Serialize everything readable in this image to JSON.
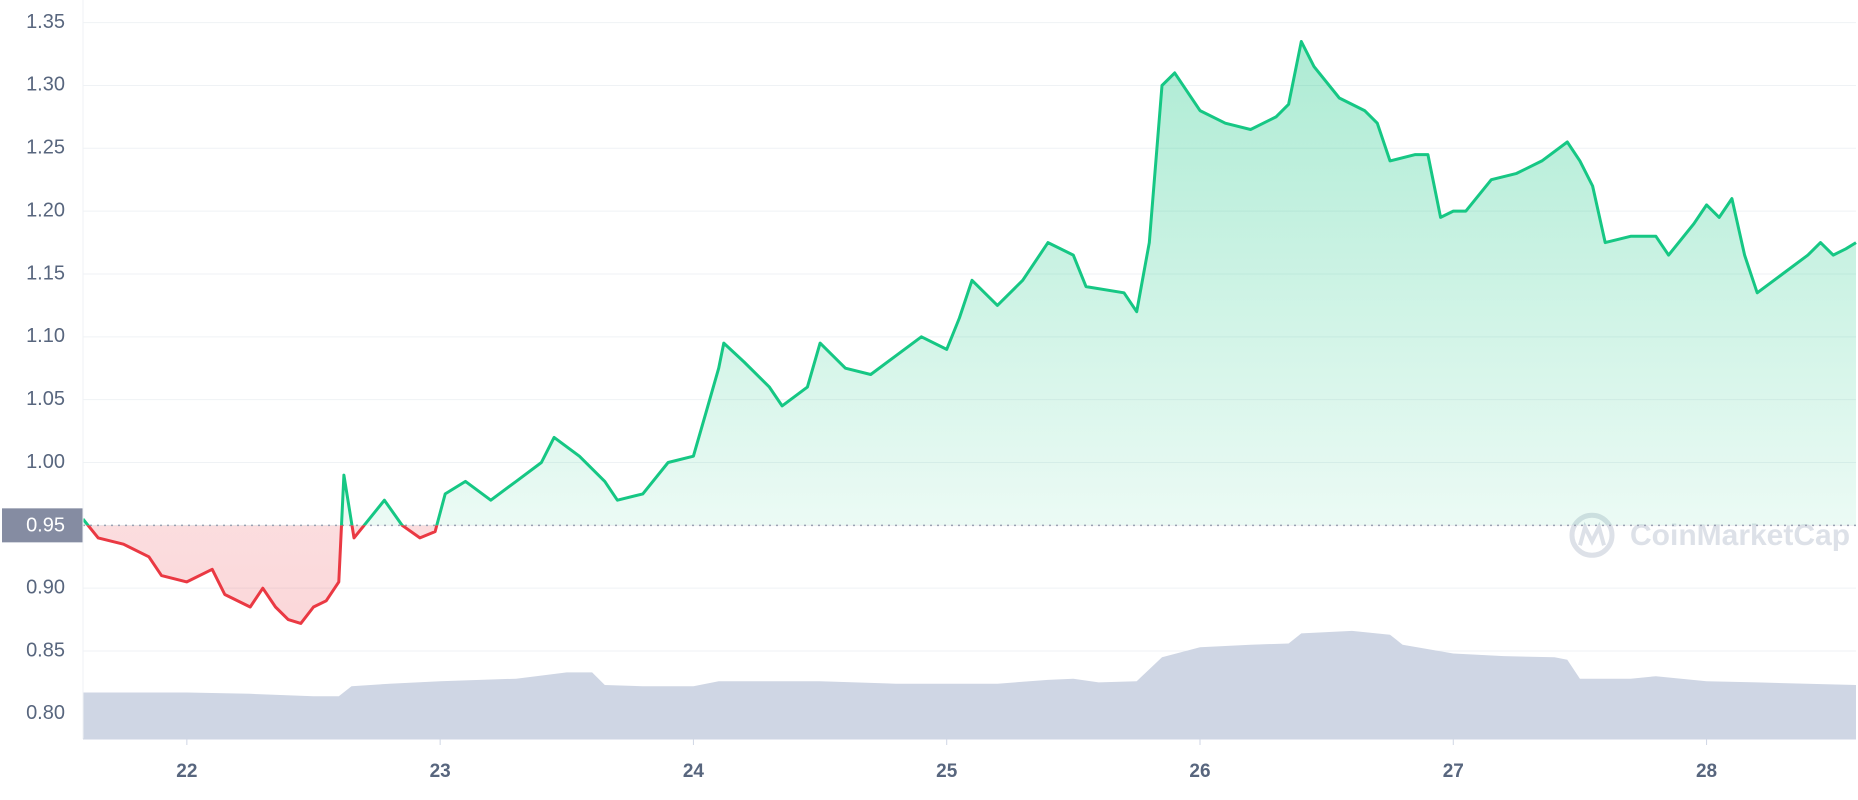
{
  "chart_data": {
    "type": "line",
    "xlim": [
      21.59,
      28.59
    ],
    "xticks": [
      22,
      23,
      24,
      25,
      26,
      27,
      28
    ],
    "ylim": [
      0.78,
      1.368
    ],
    "yticks": [
      {
        "value": 0.8,
        "label": "0.80"
      },
      0.85,
      {
        "value": 0.9,
        "label": "0.90"
      },
      0.95,
      {
        "value": 1.0,
        "label": "1.00"
      },
      1.05,
      {
        "value": 1.1,
        "label": "1.10"
      },
      1.15,
      {
        "value": 1.2,
        "label": "1.20"
      },
      1.25,
      {
        "value": 1.3,
        "label": "1.30"
      },
      1.35
    ],
    "grid": true,
    "baseline": 0.95,
    "watermark": "CoinMarketCap",
    "series": [
      {
        "color": "#16c784",
        "below_color": "#ea3943",
        "x": [
          21.59,
          21.65,
          21.75,
          21.85,
          21.9,
          22.0,
          22.1,
          22.15,
          22.25,
          22.3,
          22.35,
          22.4,
          22.45,
          22.5,
          22.55,
          22.6,
          22.62,
          22.66,
          22.72,
          22.78,
          22.85,
          22.92,
          22.98,
          23.02,
          23.1,
          23.2,
          23.3,
          23.4,
          23.45,
          23.55,
          23.65,
          23.7,
          23.8,
          23.9,
          24.0,
          24.05,
          24.1,
          24.12,
          24.2,
          24.3,
          24.35,
          24.45,
          24.5,
          24.6,
          24.7,
          24.8,
          24.9,
          25.0,
          25.05,
          25.1,
          25.2,
          25.3,
          25.4,
          25.5,
          25.55,
          25.7,
          25.75,
          25.8,
          25.85,
          25.9,
          25.95,
          26.0,
          26.1,
          26.2,
          26.3,
          26.35,
          26.4,
          26.45,
          26.55,
          26.65,
          26.7,
          26.75,
          26.85,
          26.9,
          26.95,
          27.0,
          27.05,
          27.15,
          27.25,
          27.35,
          27.45,
          27.5,
          27.55,
          27.6,
          27.7,
          27.8,
          27.85,
          27.95,
          28.0,
          28.05,
          28.1,
          28.15,
          28.2,
          28.3,
          28.4,
          28.45,
          28.5,
          28.55,
          28.59
        ],
        "values": [
          0.955,
          0.94,
          0.935,
          0.925,
          0.91,
          0.905,
          0.915,
          0.895,
          0.885,
          0.9,
          0.885,
          0.875,
          0.872,
          0.885,
          0.89,
          0.905,
          0.99,
          0.94,
          0.955,
          0.97,
          0.95,
          0.94,
          0.945,
          0.975,
          0.985,
          0.97,
          0.985,
          1.0,
          1.02,
          1.005,
          0.985,
          0.97,
          0.975,
          1.0,
          1.005,
          1.04,
          1.075,
          1.095,
          1.08,
          1.06,
          1.045,
          1.06,
          1.095,
          1.075,
          1.07,
          1.085,
          1.1,
          1.09,
          1.115,
          1.145,
          1.125,
          1.145,
          1.175,
          1.165,
          1.14,
          1.135,
          1.12,
          1.175,
          1.3,
          1.31,
          1.295,
          1.28,
          1.27,
          1.265,
          1.275,
          1.285,
          1.335,
          1.315,
          1.29,
          1.28,
          1.27,
          1.24,
          1.245,
          1.245,
          1.195,
          1.2,
          1.2,
          1.225,
          1.23,
          1.24,
          1.255,
          1.24,
          1.22,
          1.175,
          1.18,
          1.18,
          1.165,
          1.19,
          1.205,
          1.195,
          1.21,
          1.165,
          1.135,
          1.15,
          1.165,
          1.175,
          1.165,
          1.17,
          1.175
        ]
      }
    ],
    "volume": {
      "color": "#cfd6e4",
      "x": [
        21.59,
        22.0,
        22.25,
        22.5,
        22.6,
        22.65,
        22.8,
        23.0,
        23.3,
        23.5,
        23.6,
        23.65,
        23.8,
        24.0,
        24.1,
        24.5,
        24.8,
        25.2,
        25.4,
        25.5,
        25.6,
        25.75,
        25.85,
        26.0,
        26.2,
        26.35,
        26.4,
        26.6,
        26.75,
        26.8,
        27.0,
        27.2,
        27.4,
        27.45,
        27.5,
        27.7,
        27.8,
        28.0,
        28.2,
        28.59
      ],
      "values": [
        0.817,
        0.817,
        0.816,
        0.814,
        0.814,
        0.822,
        0.824,
        0.826,
        0.828,
        0.833,
        0.833,
        0.823,
        0.822,
        0.822,
        0.826,
        0.826,
        0.824,
        0.824,
        0.827,
        0.828,
        0.825,
        0.826,
        0.845,
        0.853,
        0.855,
        0.856,
        0.864,
        0.866,
        0.863,
        0.855,
        0.848,
        0.846,
        0.845,
        0.843,
        0.828,
        0.828,
        0.83,
        0.826,
        0.825,
        0.823
      ]
    }
  }
}
